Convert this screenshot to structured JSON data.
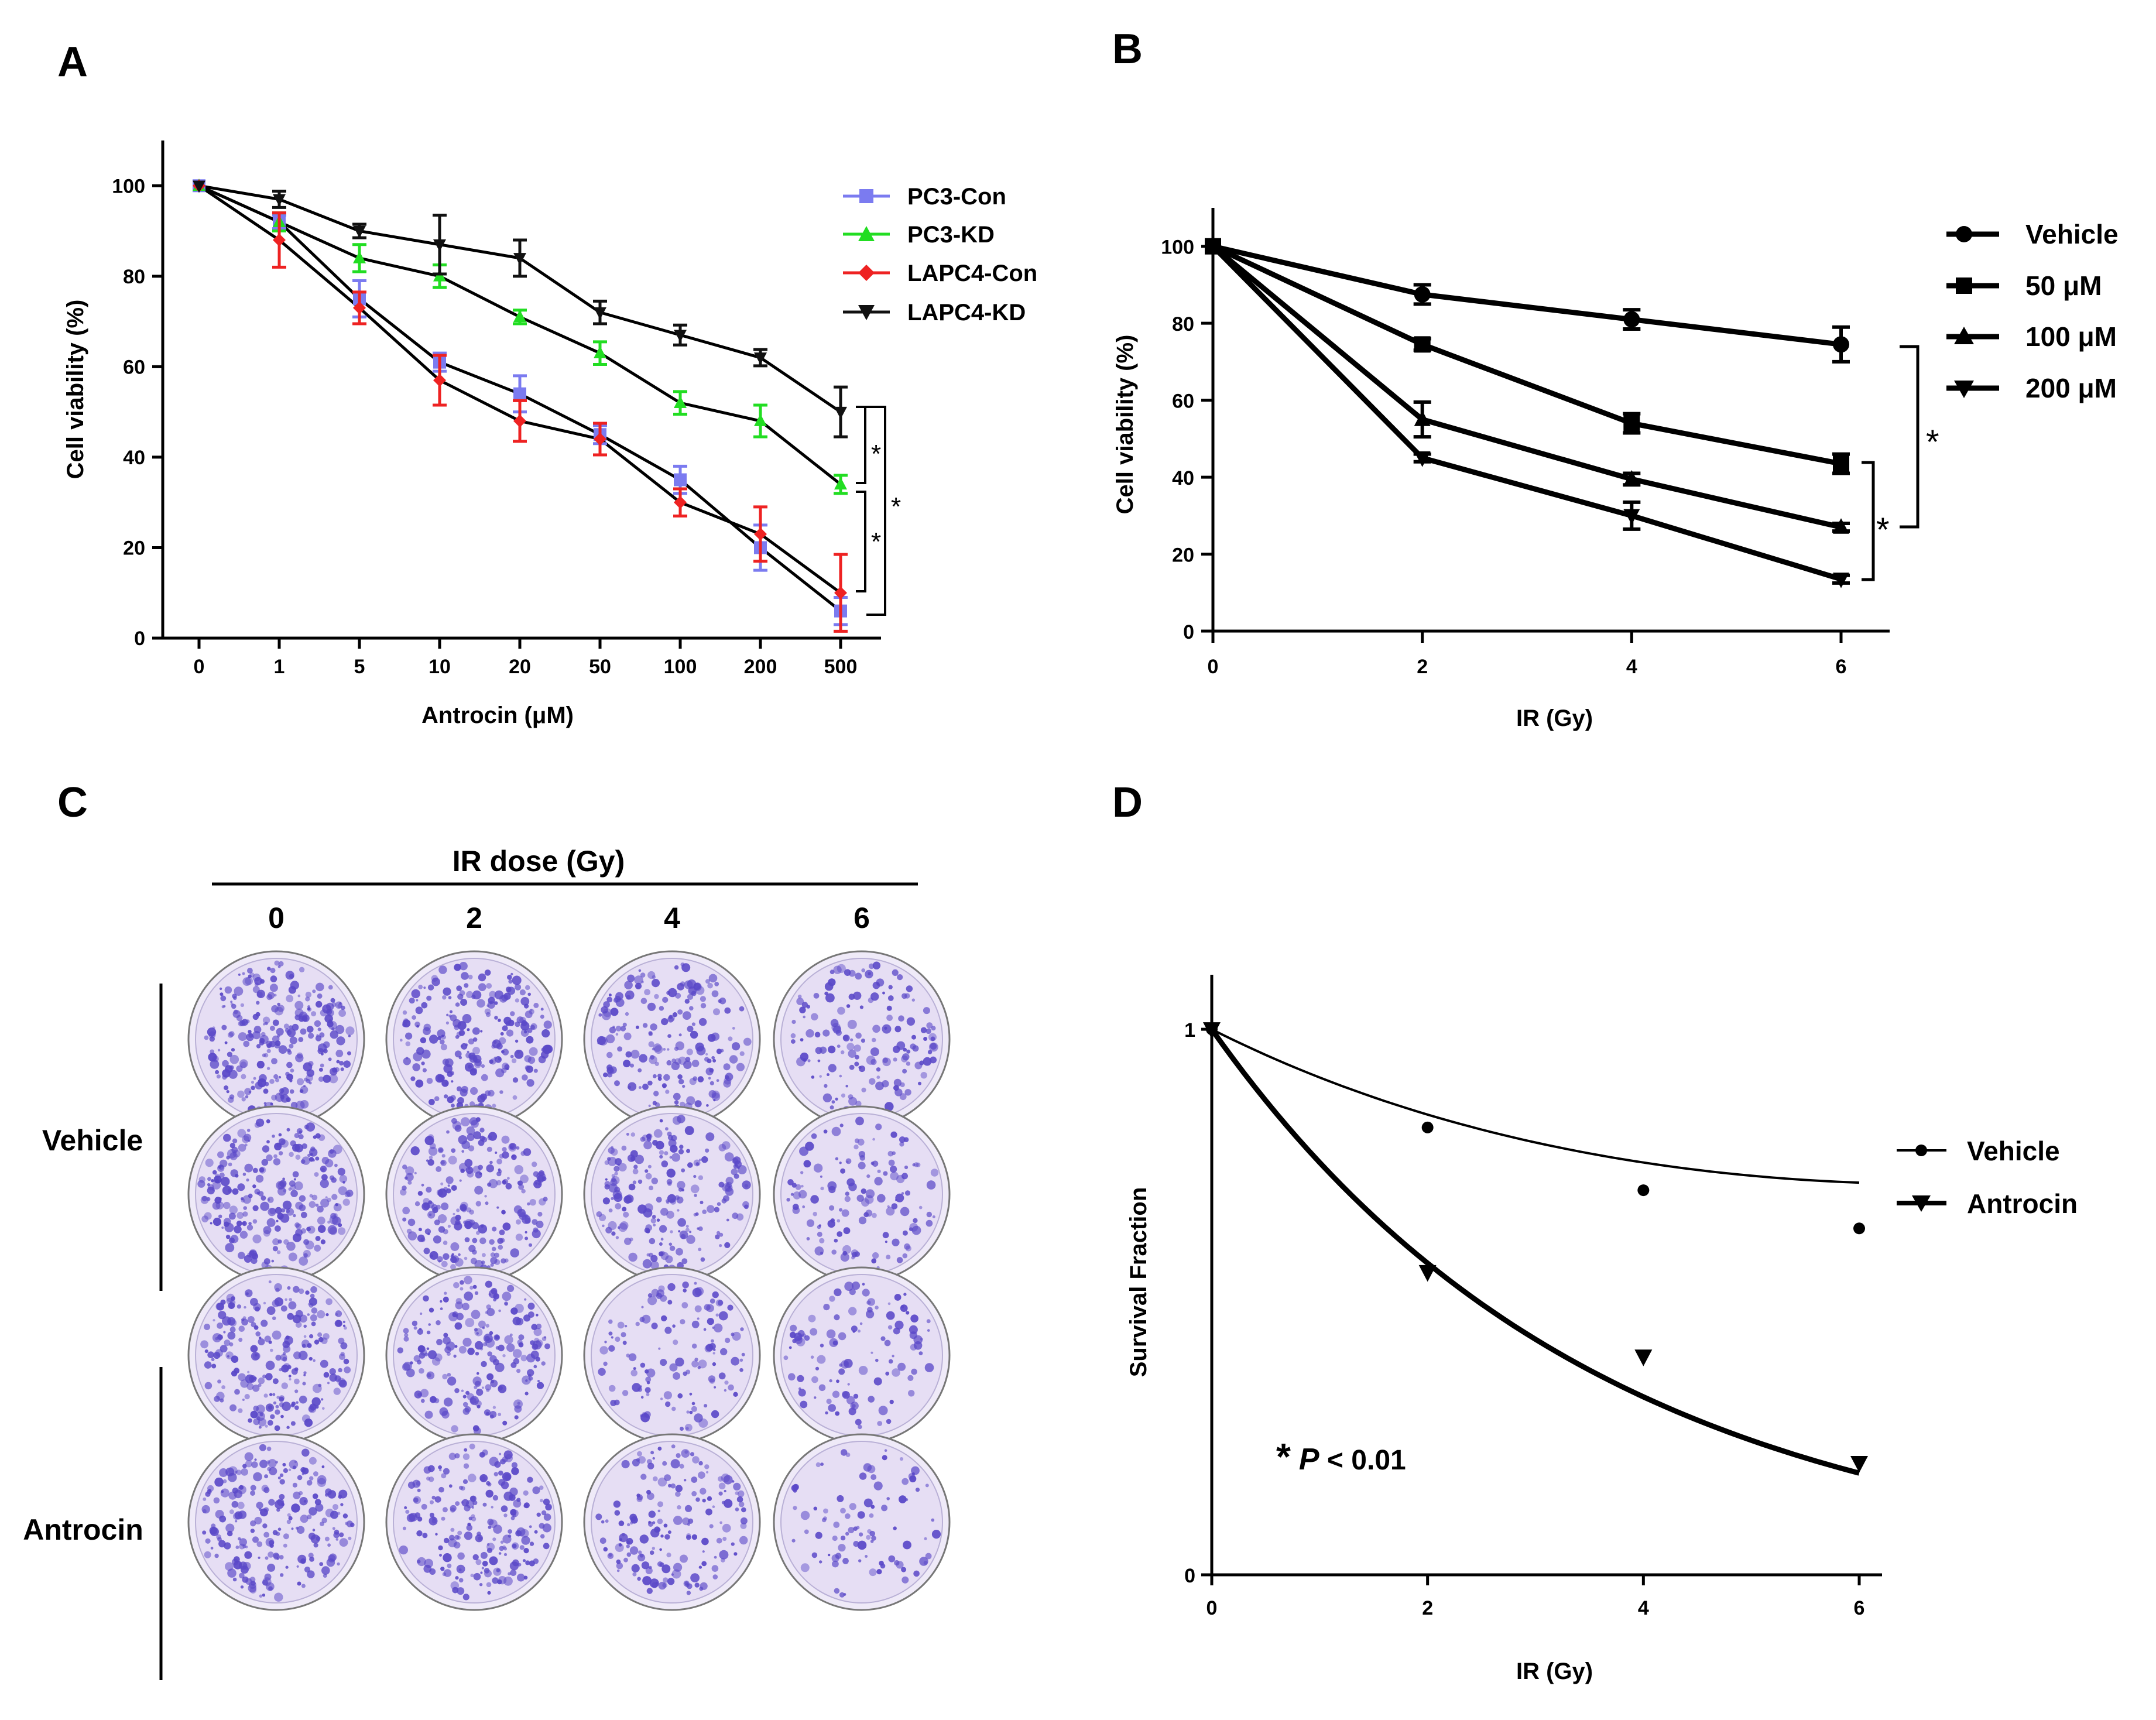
{
  "figure": {
    "panels": {
      "a": "A",
      "b": "B",
      "c": "C",
      "d": "D"
    }
  },
  "colony_panel": {
    "header": "IR dose (Gy)",
    "columns": [
      "0",
      "2",
      "4",
      "6"
    ],
    "rows": [
      "Vehicle",
      "Antrocin"
    ],
    "dish_color": "#5a48c8"
  },
  "chart_data": [
    {
      "panel": "A",
      "type": "line",
      "xlabel": "Antrocin (μM)",
      "ylabel": "Cell viability (%)",
      "categories": [
        "0",
        "1",
        "5",
        "10",
        "20",
        "50",
        "100",
        "200",
        "500"
      ],
      "ylim": [
        0,
        110
      ],
      "yticks": [
        "0",
        "20",
        "40",
        "60",
        "80",
        "100"
      ],
      "legend_position": "top-right",
      "series": [
        {
          "name": "PC3-Con",
          "color": "#7b7bf0",
          "marker": "square",
          "values": [
            100,
            92,
            75,
            61,
            54,
            45,
            35,
            20,
            6
          ],
          "errors": [
            0,
            1.5,
            4,
            2,
            4,
            2,
            3,
            5,
            3
          ]
        },
        {
          "name": "PC3-KD",
          "color": "#22dd22",
          "marker": "triangle-up",
          "values": [
            100,
            92,
            84,
            80,
            71,
            63,
            52,
            48,
            34
          ],
          "errors": [
            0,
            2,
            3,
            2.5,
            1.5,
            2.5,
            2.5,
            3.5,
            2
          ]
        },
        {
          "name": "LAPC4-Con",
          "color": "#ee2222",
          "marker": "diamond",
          "values": [
            100,
            88,
            73,
            57,
            48,
            44,
            30,
            23,
            10
          ],
          "errors": [
            0,
            6,
            3.5,
            5.5,
            4.5,
            3.5,
            3,
            6,
            8.5
          ]
        },
        {
          "name": "LAPC4-KD",
          "color": "#111111",
          "marker": "triangle-down",
          "values": [
            100,
            97,
            90,
            87,
            84,
            72,
            67,
            62,
            50
          ],
          "errors": [
            0,
            1.8,
            1.5,
            6.5,
            4,
            2.5,
            2.2,
            1.8,
            5.5
          ]
        }
      ],
      "significance": [
        "*",
        "*",
        "*"
      ]
    },
    {
      "panel": "B",
      "type": "line",
      "xlabel": "IR (Gy)",
      "ylabel": "Cell viability (%)",
      "x": [
        0,
        2,
        4,
        6
      ],
      "xlim": [
        0,
        6.5
      ],
      "ylim": [
        0,
        110
      ],
      "yticks": [
        "0",
        "20",
        "40",
        "60",
        "80",
        "100"
      ],
      "xticks": [
        "0",
        "2",
        "4",
        "6"
      ],
      "legend_position": "top-right",
      "series": [
        {
          "name": "Vehicle",
          "marker": "circle",
          "values": [
            100,
            87.5,
            81,
            74.5
          ],
          "errors": [
            0,
            2.5,
            2.5,
            4.5
          ]
        },
        {
          "name": "50 μM",
          "marker": "square",
          "values": [
            100,
            74.5,
            54,
            43.5
          ],
          "errors": [
            0,
            1.5,
            2.5,
            2.5
          ]
        },
        {
          "name": "100 μM",
          "marker": "triangle-up",
          "values": [
            100,
            55,
            39.5,
            27
          ],
          "errors": [
            0,
            4.5,
            1.5,
            1
          ]
        },
        {
          "name": "200 μM",
          "marker": "triangle-down",
          "values": [
            100,
            45,
            30,
            13.5
          ],
          "errors": [
            0,
            1,
            3.5,
            1
          ]
        }
      ],
      "significance": [
        "*",
        "*"
      ]
    },
    {
      "panel": "D",
      "type": "scatter",
      "xlabel": "IR (Gy)",
      "ylabel": "Survival Fraction",
      "x": [
        0,
        2,
        4,
        6
      ],
      "xlim": [
        0,
        6.2
      ],
      "ylim": [
        0,
        1.1
      ],
      "yticks": [
        "0",
        "1"
      ],
      "xticks": [
        "0",
        "2",
        "4",
        "6"
      ],
      "legend_position": "right",
      "series": [
        {
          "name": "Vehicle",
          "marker": "circle",
          "values": [
            1,
            0.82,
            0.705,
            0.635
          ]
        },
        {
          "name": "Antrocin",
          "marker": "triangle-down",
          "values": [
            1,
            0.555,
            0.4,
            0.205
          ]
        }
      ],
      "annotation": {
        "star": "*",
        "p": "P",
        "rest": " < 0.01"
      }
    }
  ]
}
